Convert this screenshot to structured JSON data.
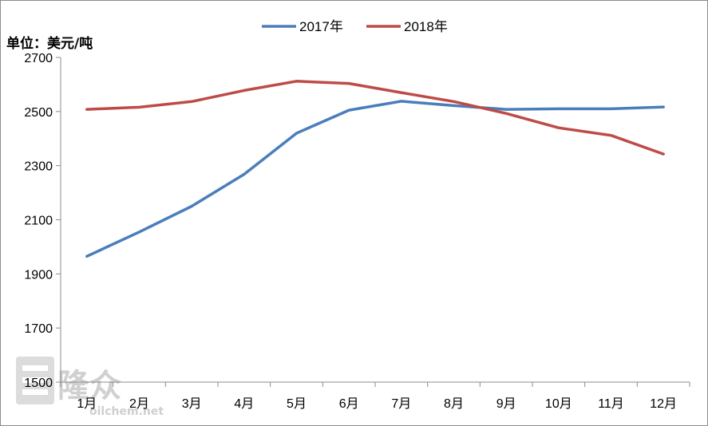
{
  "chart_data": {
    "type": "line",
    "title": "",
    "ylabel": "单位：美元/吨",
    "xlabel": "",
    "categories": [
      "1月",
      "2月",
      "3月",
      "4月",
      "5月",
      "6月",
      "7月",
      "8月",
      "9月",
      "10月",
      "11月",
      "12月"
    ],
    "ylim": [
      1500,
      2700
    ],
    "yticks": [
      1500,
      1700,
      1900,
      2100,
      2300,
      2500,
      2700
    ],
    "grid": false,
    "legend_position": "top",
    "series": [
      {
        "name": "2017年",
        "color": "#4a7ebb",
        "values": [
          1965,
          2055,
          2150,
          2268,
          2420,
          2505,
          2538,
          2522,
          2508,
          2510,
          2510,
          2517
        ]
      },
      {
        "name": "2018年",
        "color": "#be4b48",
        "values": [
          2508,
          2516,
          2537,
          2578,
          2612,
          2604,
          2570,
          2537,
          2493,
          2440,
          2412,
          2343
        ]
      }
    ]
  },
  "watermark": {
    "text": "隆众",
    "subtext": "oilchem.net"
  }
}
